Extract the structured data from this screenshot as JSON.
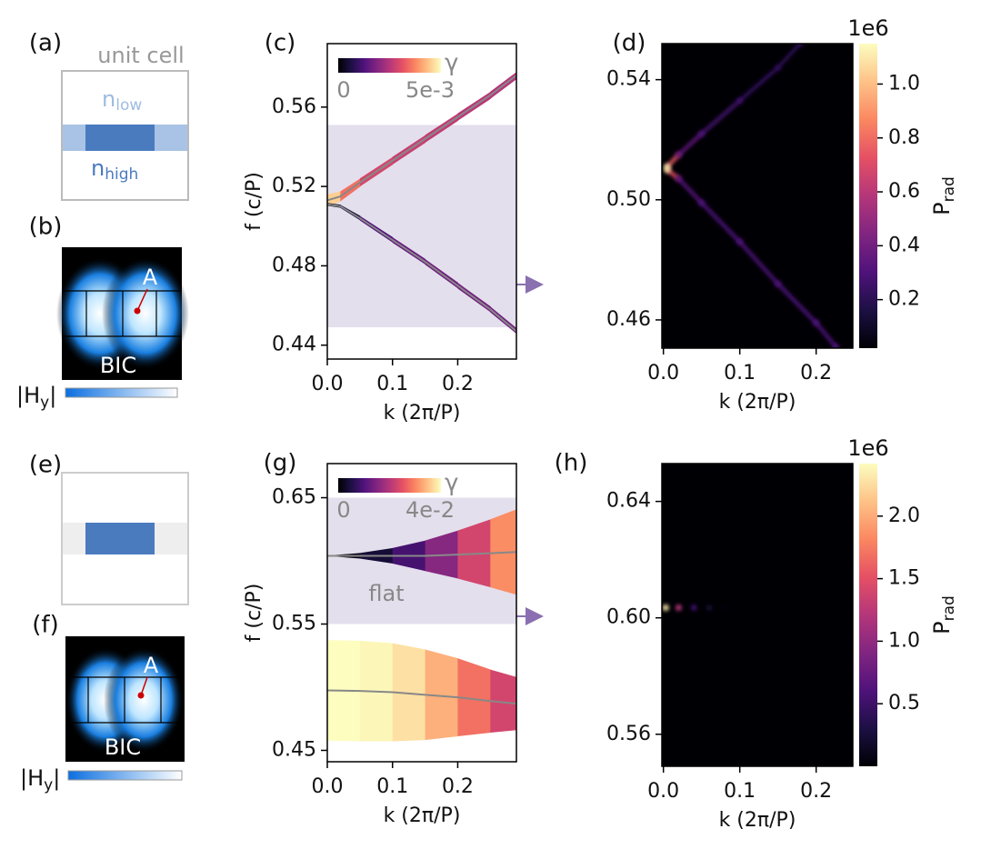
{
  "panel_labels": [
    "(a)",
    "(b)",
    "(c)",
    "(d)",
    "(e)",
    "(f)",
    "(g)",
    "(h)"
  ],
  "cell_top": {
    "title": "unit cell",
    "low": {
      "base": "n",
      "sub": "low"
    },
    "high": {
      "base": "n",
      "sub": "high"
    }
  },
  "field_top": {
    "point": "A",
    "mode": "BIC",
    "scale": {
      "base": "|H",
      "sub": "y",
      "tail": "|"
    }
  },
  "field_bottom": {
    "point": "A",
    "mode": "BIC",
    "scale": {
      "base": "|H",
      "sub": "y",
      "tail": "|"
    }
  },
  "chart_data": [
    {
      "type": "band",
      "xlabel": "k (2π/P)",
      "ylabel": "f (c/P)",
      "xlim": [
        0,
        0.29
      ],
      "xticks": [
        {
          "value": 0,
          "label": "0.0"
        },
        0.1,
        0.2
      ],
      "ylim": [
        0.433,
        0.592
      ],
      "yticks": [
        0.44,
        0.48,
        0.52,
        0.56
      ],
      "shade": [
        0.449,
        0.551
      ],
      "shade_color": "#e4dfec",
      "line_color": "#888888",
      "clabel": "γ",
      "clim": [
        0,
        0.005
      ],
      "cticks": [
        0,
        {
          "value": 0.005,
          "label": "5e-3"
        }
      ],
      "x": [
        0,
        0.02,
        0.05,
        0.1,
        0.15,
        0.2,
        0.25,
        0.29
      ],
      "series": [
        {
          "values": [
            0.513,
            0.515,
            0.522,
            0.533,
            0.544,
            0.555,
            0.566,
            0.576
          ],
          "gamma": [
            0.005,
            0.004,
            0.003,
            0.0028,
            0.0027,
            0.0026,
            0.0025,
            0.0025
          ]
        },
        {
          "values": [
            0.511,
            0.51,
            0.504,
            0.493,
            0.482,
            0.47,
            0.458,
            0.447
          ],
          "gamma": [
            0,
            0.0002,
            0.001,
            0.0015,
            0.0016,
            0.0017,
            0.0017,
            0.0016
          ]
        }
      ]
    },
    {
      "type": "heatmap",
      "xlabel": "k (2π/P)",
      "xlim": [
        -0.002,
        0.248
      ],
      "xticks": [
        {
          "value": 0,
          "label": "0.0"
        },
        0.1,
        0.2
      ],
      "ylim": [
        0.4506,
        0.552
      ],
      "yticks": [
        0.46,
        {
          "value": 0.5,
          "label": "0.50"
        },
        0.54
      ],
      "clabel": {
        "base": "P",
        "sub": "rad"
      },
      "cscale": "1e6",
      "clim": [
        0.02,
        1.15
      ],
      "cticks": [
        0.2,
        0.4,
        0.6,
        0.8,
        {
          "value": 1,
          "label": "1.0"
        }
      ],
      "series": [
        {
          "x": [
            0.005,
            0.02,
            0.05,
            0.1,
            0.15,
            0.179
          ],
          "values": [
            0.511,
            0.515,
            0.522,
            0.533,
            0.544,
            0.552
          ],
          "intensity": [
            1.1,
            0.4,
            0.3,
            0.25,
            0.2,
            0.2
          ]
        },
        {
          "x": [
            0.005,
            0.02,
            0.05,
            0.1,
            0.15,
            0.2,
            0.226
          ],
          "values": [
            0.51,
            0.507,
            0.499,
            0.486,
            0.472,
            0.459,
            0.451
          ],
          "intensity": [
            1.1,
            0.35,
            0.3,
            0.3,
            0.3,
            0.3,
            0.3
          ]
        }
      ]
    },
    {
      "type": "band",
      "xlabel": "k (2π/P)",
      "ylabel": "f (c/P)",
      "annotation": "flat",
      "xlim": [
        0,
        0.29
      ],
      "xticks": [
        {
          "value": 0,
          "label": "0.0"
        },
        0.1,
        0.2
      ],
      "ylim": [
        0.441,
        0.677
      ],
      "yticks": [
        0.45,
        0.55,
        0.65
      ],
      "shade": [
        0.55,
        0.65
      ],
      "shade_color": "#e4dfec",
      "line_color": "#888888",
      "clabel": "γ",
      "clim": [
        0,
        0.04
      ],
      "cticks": [
        0,
        {
          "value": 0.04,
          "label": "4e-2"
        }
      ],
      "x": [
        0,
        0.05,
        0.1,
        0.15,
        0.2,
        0.25,
        0.29
      ],
      "series": [
        {
          "values": [
            0.604,
            0.604,
            0.604,
            0.604,
            0.605,
            0.606,
            0.607
          ],
          "gamma": [
            0,
            0.002,
            0.006,
            0.012,
            0.019,
            0.027,
            0.034
          ]
        },
        {
          "values": [
            0.4975,
            0.497,
            0.496,
            0.494,
            0.492,
            0.489,
            0.487
          ],
          "gamma": [
            0.04,
            0.04,
            0.039,
            0.036,
            0.031,
            0.025,
            0.021
          ]
        }
      ]
    },
    {
      "type": "heatmap",
      "xlabel": "k (2π/P)",
      "xlim": [
        -0.002,
        0.248
      ],
      "xticks": [
        {
          "value": 0,
          "label": "0.0"
        },
        0.1,
        0.2
      ],
      "ylim": [
        0.549,
        0.653
      ],
      "yticks": [
        0.56,
        {
          "value": 0.6,
          "label": "0.60"
        },
        0.64
      ],
      "clabel": {
        "base": "P",
        "sub": "rad"
      },
      "cscale": "1e6",
      "clim": [
        0,
        2.42
      ],
      "cticks": [
        0.5,
        {
          "value": 1,
          "label": "1.0"
        },
        1.5,
        {
          "value": 2,
          "label": "2.0"
        }
      ],
      "series": [
        {
          "x": [
            0.003,
            0.02,
            0.04,
            0.06,
            0.08
          ],
          "values": [
            0.6035,
            0.6035,
            0.6035,
            0.6035,
            0.6035
          ],
          "intensity": [
            2.3,
            1.2,
            0.5,
            0.2,
            0.05
          ]
        }
      ]
    }
  ]
}
